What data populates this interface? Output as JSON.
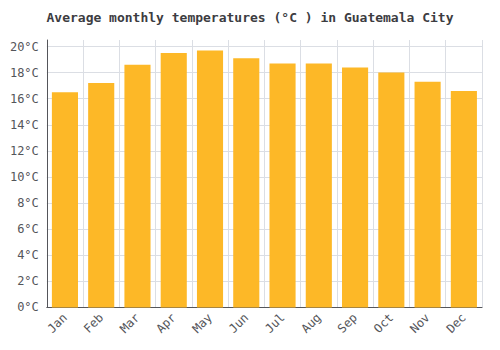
{
  "chart_data": {
    "type": "bar",
    "title": "Average monthly temperatures (°C ) in Guatemala City",
    "categories": [
      "Jan",
      "Feb",
      "Mar",
      "Apr",
      "May",
      "Jun",
      "Jul",
      "Aug",
      "Sep",
      "Oct",
      "Nov",
      "Dec"
    ],
    "values": [
      16.5,
      17.2,
      18.6,
      19.5,
      19.7,
      19.1,
      18.7,
      18.7,
      18.4,
      18.0,
      17.3,
      16.6
    ],
    "color": "#FDB827",
    "ylim": [
      0,
      20.5
    ],
    "yticks": [
      {
        "value": 0,
        "label": "0°C"
      },
      {
        "value": 2,
        "label": "2°C"
      },
      {
        "value": 4,
        "label": "4°C"
      },
      {
        "value": 6,
        "label": "6°C"
      },
      {
        "value": 8,
        "label": "8°C"
      },
      {
        "value": 10,
        "label": "10°C"
      },
      {
        "value": 12,
        "label": "12°C"
      },
      {
        "value": 14,
        "label": "14°C"
      },
      {
        "value": 16,
        "label": "16°C"
      },
      {
        "value": 18,
        "label": "18°C"
      },
      {
        "value": 20,
        "label": "20°C"
      }
    ],
    "grid": true
  }
}
